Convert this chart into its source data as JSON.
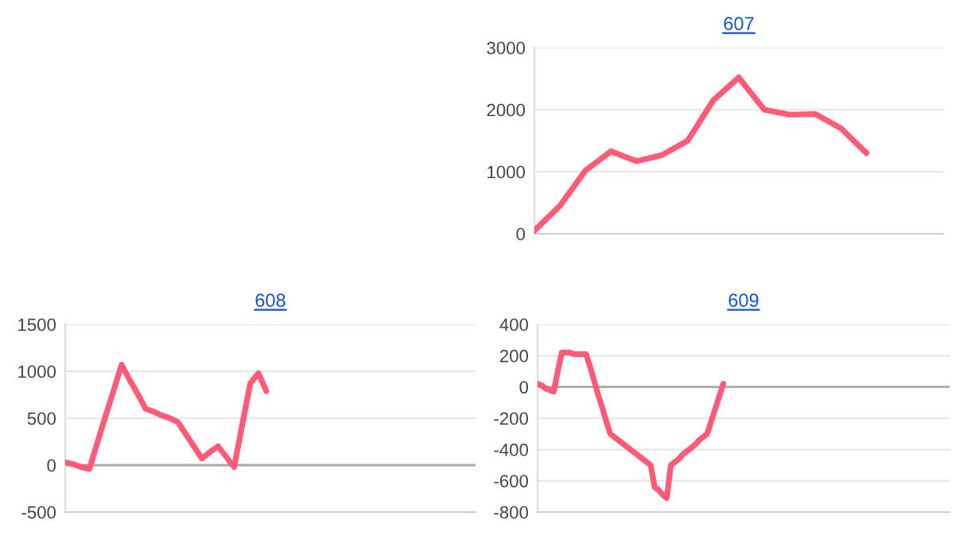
{
  "chart_data": [
    {
      "type": "line",
      "title": "607",
      "categories": [
        null,
        null,
        null,
        null,
        null,
        null,
        null,
        null,
        null,
        null,
        null,
        null,
        null,
        null,
        null,
        null,
        null
      ],
      "ylim": [
        0,
        3000
      ],
      "yticks": [
        0,
        1000,
        2000,
        3000
      ],
      "tick_labels": "y",
      "grid": "y",
      "marker": "none",
      "line_style": "solid",
      "series": [
        {
          "color": "#ff5a78",
          "values": [
            50,
            450,
            1020,
            1330,
            1170,
            1270,
            1500,
            2150,
            2520,
            2000,
            1920,
            1930,
            1700,
            1300,
            null,
            null,
            null
          ]
        }
      ]
    },
    {
      "type": "line",
      "title": "608",
      "categories": [
        null,
        null,
        null,
        null,
        null,
        null,
        null,
        null,
        null,
        null,
        null,
        null,
        null,
        null,
        null,
        null,
        null,
        null,
        null,
        null,
        null,
        null,
        null,
        null,
        null,
        null,
        null,
        null,
        null,
        null,
        null,
        null,
        null,
        null,
        null,
        null,
        null,
        null,
        null,
        null,
        null,
        null,
        null,
        null,
        null,
        null,
        null,
        null,
        null,
        null,
        null,
        null
      ],
      "ylim": [
        -500,
        1500
      ],
      "yticks": [
        -500,
        0,
        500,
        1000,
        1500
      ],
      "tick_labels": "y",
      "grid": "y",
      "marker": "none",
      "line_style": "solid",
      "ref_lines": [
        {
          "axis": "y",
          "value": 0,
          "color": "#aaaaaa"
        }
      ],
      "series": [
        {
          "color": "#ff5a78",
          "values": [
            30,
            10,
            -20,
            -40,
            240,
            520,
            790,
            1070,
            910,
            760,
            600,
            570,
            530,
            500,
            460,
            330,
            200,
            70,
            140,
            200,
            90,
            -20,
            430,
            870,
            980,
            790,
            null,
            null,
            null,
            null,
            null,
            null,
            null,
            null,
            null,
            null,
            null,
            null,
            null,
            null,
            null,
            null,
            null,
            null,
            null,
            null,
            null,
            null,
            null,
            null,
            null,
            null
          ]
        }
      ]
    },
    {
      "type": "line",
      "title": "609",
      "categories": [
        null,
        null,
        null,
        null,
        null,
        null,
        null,
        null,
        null,
        null,
        null,
        null,
        null,
        null,
        null,
        null,
        null,
        null,
        null,
        null,
        null,
        null,
        null,
        null,
        null,
        null,
        null,
        null,
        null,
        null,
        null,
        null,
        null,
        null,
        null,
        null,
        null,
        null,
        null,
        null,
        null,
        null,
        null,
        null,
        null,
        null,
        null,
        null,
        null,
        null,
        null,
        null,
        null,
        null,
        null,
        null,
        null,
        null,
        null,
        null,
        null,
        null,
        null,
        null,
        null,
        null,
        null,
        null,
        null,
        null,
        null,
        null,
        null,
        null,
        null,
        null,
        null,
        null,
        null,
        null,
        null,
        null,
        null,
        null,
        null,
        null,
        null,
        null,
        null,
        null,
        null,
        null,
        null,
        null,
        null,
        null,
        null,
        null,
        null,
        null,
        null,
        null,
        null
      ],
      "ylim": [
        -800,
        400
      ],
      "yticks": [
        -800,
        -600,
        -400,
        -200,
        0,
        200,
        400
      ],
      "tick_labels": "y",
      "grid": "y",
      "marker": "none",
      "line_style": "solid",
      "ref_lines": [
        {
          "axis": "y",
          "value": 0,
          "color": "#aaaaaa"
        }
      ],
      "series": [
        {
          "color": "#ff5a78",
          "values": [
            20,
            10,
            -10,
            -20,
            -30,
            100,
            220,
            220,
            220,
            210,
            210,
            210,
            210,
            130,
            40,
            -50,
            -130,
            -220,
            -300,
            -320,
            -340,
            -360,
            -380,
            -400,
            -420,
            -440,
            -460,
            -480,
            -500,
            -640,
            -660,
            -690,
            -710,
            -500,
            -480,
            -460,
            -430,
            -410,
            -390,
            -370,
            -340,
            -320,
            -300,
            -220,
            -140,
            -60,
            20,
            null,
            null,
            null,
            null,
            null,
            null,
            null,
            null,
            null,
            null,
            null,
            null,
            null,
            null,
            null,
            null,
            null,
            null,
            null,
            null,
            null,
            null,
            null,
            null,
            null,
            null,
            null,
            null,
            null,
            null,
            null,
            null,
            null,
            null,
            null,
            null,
            null,
            null,
            null,
            null,
            null,
            null,
            null,
            null,
            null,
            null,
            null,
            null,
            null,
            null,
            null,
            null,
            null,
            null,
            null,
            null
          ]
        }
      ]
    }
  ]
}
